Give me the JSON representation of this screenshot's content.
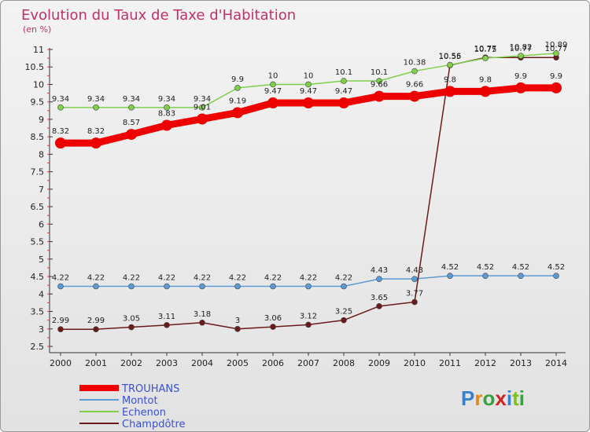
{
  "chart_data": {
    "type": "line",
    "title": "Evolution du Taux de Taxe d'Habitation",
    "subtitle": "(en %)",
    "x": [
      "2000",
      "2001",
      "2002",
      "2003",
      "2004",
      "2005",
      "2006",
      "2007",
      "2008",
      "2009",
      "2010",
      "2011",
      "2012",
      "2013",
      "2014"
    ],
    "ylim": [
      2.5,
      11
    ],
    "yticks": [
      2.5,
      3,
      3.5,
      4,
      4.5,
      5,
      5.5,
      6,
      6.5,
      7,
      7.5,
      8,
      8.5,
      9,
      9.5,
      10,
      10.5,
      11
    ],
    "grid": false,
    "legend_position": "bottom-left",
    "series": [
      {
        "name": "TROUHANS",
        "color": "#ee0000",
        "values": [
          8.32,
          8.32,
          8.57,
          8.83,
          9.01,
          9.19,
          9.47,
          9.47,
          9.47,
          9.66,
          9.66,
          9.8,
          9.8,
          9.9,
          9.9
        ]
      },
      {
        "name": "Montot",
        "color": "#5b9bd5",
        "values": [
          4.22,
          4.22,
          4.22,
          4.22,
          4.22,
          4.22,
          4.22,
          4.22,
          4.22,
          4.43,
          4.43,
          4.52,
          4.52,
          4.52,
          4.52
        ]
      },
      {
        "name": "Echenon",
        "color": "#7ed04b",
        "values": [
          9.34,
          9.34,
          9.34,
          9.34,
          9.34,
          9.9,
          10,
          10,
          10.1,
          10.1,
          10.38,
          10.56,
          10.75,
          10.82,
          10.89
        ]
      },
      {
        "name": "Champdôtre",
        "color": "#6b1a1a",
        "values": [
          2.99,
          2.99,
          3.05,
          3.11,
          3.18,
          3,
          3.06,
          3.12,
          3.25,
          3.65,
          3.77,
          10.55,
          10.77,
          10.77,
          10.77
        ]
      }
    ]
  },
  "logo": {
    "text": "Proxiti"
  }
}
